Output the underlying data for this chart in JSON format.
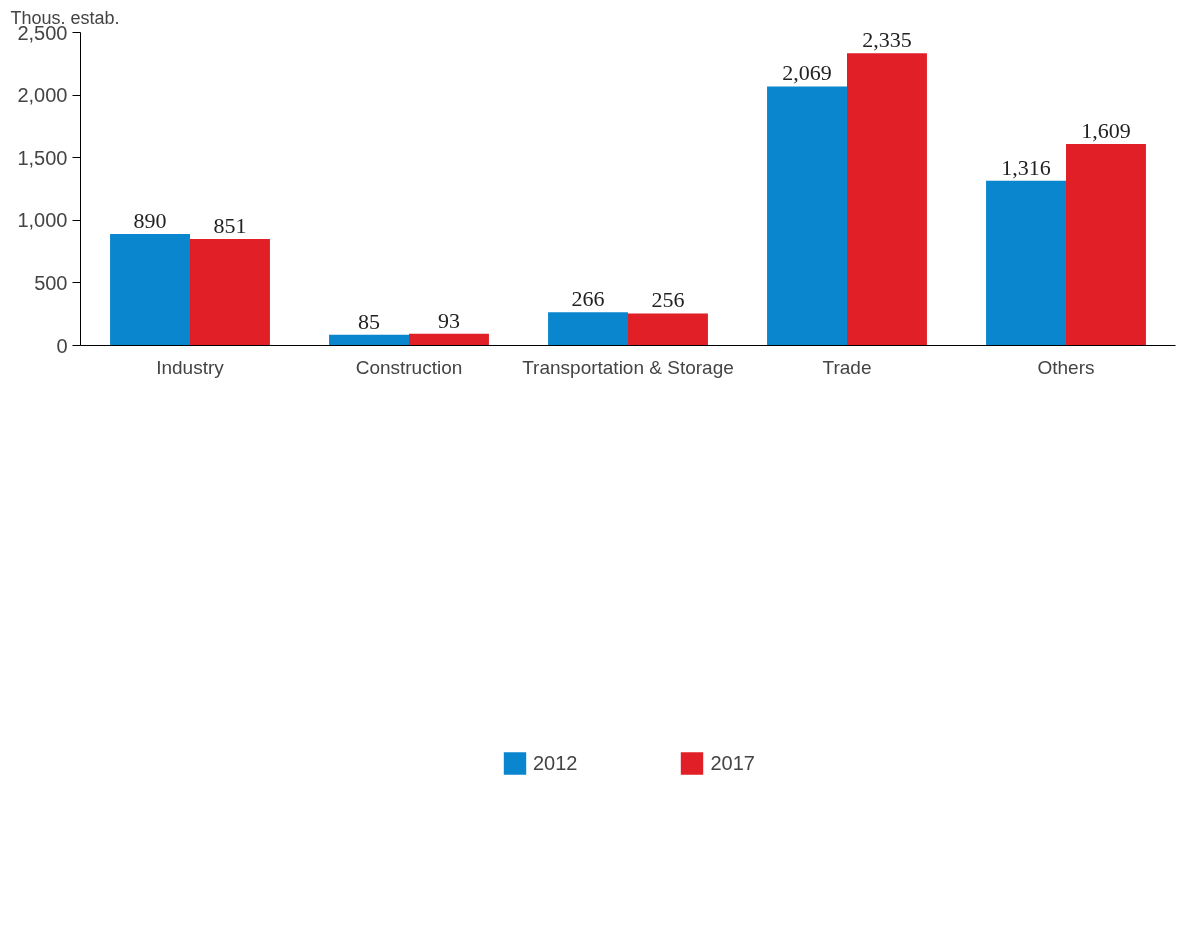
{
  "chart_data": {
    "type": "bar",
    "ylabel": "Thous. estab.",
    "categories": [
      "Industry",
      "Construction",
      "Transportation & Storage",
      "Trade",
      "Others"
    ],
    "series": [
      {
        "name": "2012",
        "color": "#0a86cf",
        "values": [
          890,
          85,
          266,
          2069,
          1316
        ],
        "value_labels": [
          "890",
          "85",
          "266",
          "2,069",
          "1,316"
        ]
      },
      {
        "name": "2017",
        "color": "#e01f26",
        "values": [
          851,
          93,
          256,
          2335,
          1609
        ],
        "value_labels": [
          "851",
          "93",
          "256",
          "2,335",
          "1,609"
        ]
      }
    ],
    "ylim": [
      0,
      2500
    ],
    "yticks": [
      {
        "value": 0,
        "label": "0"
      },
      {
        "value": 500,
        "label": "500"
      },
      {
        "value": 1000,
        "label": "1,000"
      },
      {
        "value": 1500,
        "label": "1,500"
      },
      {
        "value": 2000,
        "label": "2,000"
      },
      {
        "value": 2500,
        "label": "2,500"
      }
    ],
    "grid": false,
    "legend": "bottom"
  }
}
